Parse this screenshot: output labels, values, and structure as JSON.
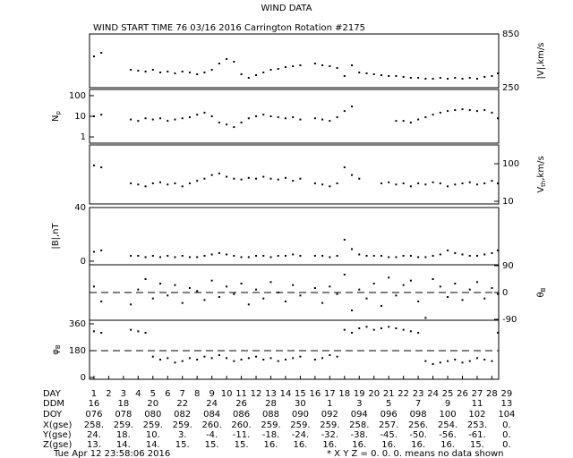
{
  "title": "WIND DATA",
  "subtitle": "WIND START TIME  76 03/16 2016 Carrington Rotation #2175",
  "chart_data": [
    {
      "type": "scatter",
      "ylabel": "|V|,km/s",
      "axis_side": "right",
      "log": false,
      "color": "#000000",
      "xlim": [
        0.7,
        28.46
      ],
      "ylim": [
        250,
        850
      ],
      "yticks": [
        250,
        850
      ],
      "x": [
        1,
        1.5,
        2,
        2.5,
        3,
        3.5,
        4,
        4.5,
        5,
        5.5,
        6,
        6.5,
        7,
        7.5,
        8,
        8.5,
        9,
        9.5,
        10,
        10.5,
        11,
        11.5,
        12,
        12.5,
        13,
        13.5,
        14,
        14.5,
        15,
        15.5,
        16,
        16.5,
        17,
        17.5,
        18,
        18.5,
        19,
        19.5,
        20,
        20.5,
        21,
        21.5,
        22,
        22.5,
        23,
        23.5,
        24,
        24.5,
        25,
        25.5,
        26,
        26.5,
        27,
        27.5,
        28,
        28.4
      ],
      "values": [
        600,
        640,
        null,
        null,
        null,
        450,
        440,
        430,
        450,
        420,
        430,
        410,
        430,
        420,
        400,
        420,
        450,
        520,
        570,
        540,
        400,
        360,
        390,
        420,
        450,
        460,
        480,
        490,
        500,
        null,
        520,
        500,
        490,
        470,
        380,
        500,
        420,
        410,
        400,
        390,
        380,
        380,
        370,
        360,
        360,
        350,
        350,
        360,
        350,
        360,
        350,
        360,
        350,
        370,
        380,
        410
      ]
    },
    {
      "type": "scatter",
      "ylabel": "N",
      "ylabel_sub": "p",
      "axis_side": "left",
      "log": true,
      "color": "#000000",
      "xlim": [
        0.7,
        28.46
      ],
      "ylim": [
        0.5,
        200
      ],
      "yticks": [
        1,
        10,
        100
      ],
      "x": [
        1,
        1.5,
        2,
        2.5,
        3,
        3.5,
        4,
        4.5,
        5,
        5.5,
        6,
        6.5,
        7,
        7.5,
        8,
        8.5,
        9,
        9.5,
        10,
        10.5,
        11,
        11.5,
        12,
        12.5,
        13,
        13.5,
        14,
        14.5,
        15,
        15.5,
        16,
        16.5,
        17,
        17.5,
        18,
        18.5,
        19,
        19.5,
        20,
        20.5,
        21,
        21.5,
        22,
        22.5,
        23,
        23.5,
        24,
        24.5,
        25,
        25.5,
        26,
        26.5,
        27,
        27.5,
        28,
        28.4
      ],
      "values": [
        10,
        12,
        null,
        null,
        null,
        7,
        6,
        8,
        7,
        8,
        6,
        7,
        8,
        9,
        12,
        15,
        10,
        5,
        4,
        3,
        5,
        8,
        10,
        12,
        10,
        9,
        8,
        9,
        7,
        null,
        8,
        7,
        6,
        9,
        18,
        30,
        null,
        null,
        null,
        null,
        null,
        6,
        6,
        5,
        7,
        9,
        12,
        15,
        18,
        20,
        22,
        20,
        18,
        20,
        15,
        8
      ]
    },
    {
      "type": "scatter",
      "ylabel": "V",
      "ylabel_sub": "th",
      "ylabel_suffix": ",km/s",
      "axis_side": "right",
      "log": true,
      "color": "#000000",
      "xlim": [
        0.7,
        28.46
      ],
      "ylim": [
        8.5,
        316
      ],
      "yticks": [
        10,
        100
      ],
      "x": [
        1,
        1.5,
        2,
        2.5,
        3,
        3.5,
        4,
        4.5,
        5,
        5.5,
        6,
        6.5,
        7,
        7.5,
        8,
        8.5,
        9,
        9.5,
        10,
        10.5,
        11,
        11.5,
        12,
        12.5,
        13,
        13.5,
        14,
        14.5,
        15,
        15.5,
        16,
        16.5,
        17,
        17.5,
        18,
        18.5,
        19,
        19.5,
        20,
        20.5,
        21,
        21.5,
        22,
        22.5,
        23,
        23.5,
        24,
        24.5,
        25,
        25.5,
        26,
        26.5,
        27,
        27.5,
        28,
        28.4
      ],
      "values": [
        90,
        80,
        null,
        null,
        null,
        30,
        28,
        25,
        30,
        32,
        28,
        30,
        25,
        30,
        35,
        40,
        50,
        55,
        45,
        40,
        38,
        42,
        40,
        45,
        40,
        38,
        42,
        35,
        40,
        null,
        30,
        28,
        25,
        30,
        80,
        50,
        40,
        null,
        null,
        30,
        32,
        28,
        30,
        25,
        30,
        28,
        32,
        30,
        25,
        28,
        30,
        32,
        28,
        30,
        35,
        30
      ]
    },
    {
      "type": "scatter",
      "ylabel": "|B|,nT",
      "axis_side": "left",
      "log": false,
      "color": "#000000",
      "xlim": [
        0.7,
        28.46
      ],
      "ylim": [
        -2.7,
        40
      ],
      "yticks": [
        0,
        40
      ],
      "x": [
        1,
        1.5,
        2,
        2.5,
        3,
        3.5,
        4,
        4.5,
        5,
        5.5,
        6,
        6.5,
        7,
        7.5,
        8,
        8.5,
        9,
        9.5,
        10,
        10.5,
        11,
        11.5,
        12,
        12.5,
        13,
        13.5,
        14,
        14.5,
        15,
        15.5,
        16,
        16.5,
        17,
        17.5,
        18,
        18.5,
        19,
        19.5,
        20,
        20.5,
        21,
        21.5,
        22,
        22.5,
        23,
        23.5,
        24,
        24.5,
        25,
        25.5,
        26,
        26.5,
        27,
        27.5,
        28,
        28.4
      ],
      "values": [
        7,
        8,
        null,
        null,
        null,
        4,
        4,
        3,
        4,
        3,
        4,
        3,
        4,
        3,
        3,
        4,
        5,
        6,
        5,
        4,
        3,
        3,
        4,
        4,
        3,
        4,
        4,
        5,
        4,
        null,
        4,
        4,
        3,
        4,
        16,
        9,
        5,
        4,
        4,
        4,
        3,
        3,
        4,
        4,
        3,
        3,
        4,
        5,
        8,
        6,
        5,
        4,
        4,
        5,
        6,
        8
      ]
    },
    {
      "type": "scatter",
      "ylabel": "θ",
      "ylabel_sub": "B",
      "axis_side": "right",
      "log": false,
      "color": "#000000",
      "hline": 0,
      "xlim": [
        0.7,
        28.46
      ],
      "ylim": [
        -93,
        93
      ],
      "yticks": [
        -90,
        0,
        90
      ],
      "x": [
        1,
        1.5,
        2,
        2.5,
        3,
        3.5,
        4,
        4.5,
        5,
        5.5,
        6,
        6.5,
        7,
        7.5,
        8,
        8.5,
        9,
        9.5,
        10,
        10.5,
        11,
        11.5,
        12,
        12.5,
        13,
        13.5,
        14,
        14.5,
        15,
        15.5,
        16,
        16.5,
        17,
        17.5,
        18,
        18.5,
        19,
        19.5,
        20,
        20.5,
        21,
        21.5,
        22,
        22.5,
        23,
        23.5,
        24,
        24.5,
        25,
        25.5,
        26,
        26.5,
        27,
        27.5,
        28,
        28.4
      ],
      "values": [
        20,
        -30,
        null,
        null,
        null,
        -40,
        10,
        45,
        -20,
        30,
        -10,
        25,
        -35,
        15,
        5,
        -25,
        40,
        -15,
        20,
        -5,
        30,
        -40,
        10,
        -20,
        35,
        0,
        -30,
        25,
        -10,
        null,
        15,
        -35,
        20,
        -5,
        60,
        -60,
        10,
        -20,
        30,
        -45,
        50,
        -10,
        25,
        40,
        -30,
        -85,
        45,
        20,
        -15,
        30,
        -25,
        10,
        35,
        -20,
        15,
        -5
      ]
    },
    {
      "type": "scatter",
      "ylabel": "φ",
      "ylabel_sub": "B",
      "axis_side": "left",
      "log": false,
      "color": "#000000",
      "hline": 180,
      "xlim": [
        0.7,
        28.46
      ],
      "ylim": [
        -12,
        384
      ],
      "yticks": [
        0,
        180,
        360
      ],
      "x": [
        1,
        1.5,
        2,
        2.5,
        3,
        3.5,
        4,
        4.5,
        5,
        5.5,
        6,
        6.5,
        7,
        7.5,
        8,
        8.5,
        9,
        9.5,
        10,
        10.5,
        11,
        11.5,
        12,
        12.5,
        13,
        13.5,
        14,
        14.5,
        15,
        15.5,
        16,
        16.5,
        17,
        17.5,
        18,
        18.5,
        19,
        19.5,
        20,
        20.5,
        21,
        21.5,
        22,
        22.5,
        23,
        23.5,
        24,
        24.5,
        25,
        25.5,
        26,
        26.5,
        27,
        27.5,
        28,
        28.4
      ],
      "values": [
        310,
        300,
        null,
        null,
        null,
        320,
        310,
        300,
        140,
        120,
        130,
        100,
        110,
        130,
        120,
        140,
        130,
        150,
        130,
        110,
        120,
        130,
        140,
        120,
        130,
        110,
        120,
        130,
        140,
        null,
        120,
        130,
        150,
        140,
        320,
        300,
        330,
        340,
        320,
        330,
        340,
        330,
        320,
        310,
        300,
        110,
        90,
        100,
        110,
        120,
        100,
        110,
        130,
        120,
        110,
        300
      ]
    }
  ],
  "table": {
    "row_labels": [
      "DAY",
      "DDM",
      "DOY",
      "X(gse)",
      "Y(gse)",
      "Z(gse)"
    ],
    "day": [
      1,
      2,
      3,
      4,
      5,
      6,
      7,
      8,
      9,
      10,
      11,
      12,
      13,
      14,
      15,
      16,
      17,
      18,
      19,
      20,
      21,
      22,
      23,
      24,
      25,
      26,
      27,
      28,
      29
    ],
    "ddm": [
      "16",
      "18",
      "20",
      "22",
      "24",
      "26",
      "28",
      "30",
      "1",
      "3",
      "5",
      "7",
      "9",
      "11",
      "13"
    ],
    "doy": [
      "076",
      "078",
      "080",
      "082",
      "084",
      "086",
      "088",
      "090",
      "092",
      "094",
      "096",
      "098",
      "100",
      "102",
      "104"
    ],
    "x_gse": [
      "258.",
      "259.",
      "259.",
      "259.",
      "260.",
      "260.",
      "259.",
      "259.",
      "259.",
      "258.",
      "257.",
      "256.",
      "254.",
      "253.",
      "0."
    ],
    "y_gse": [
      "24.",
      "18.",
      "10.",
      "3.",
      "-4.",
      "-11.",
      "-18.",
      "-24.",
      "-32.",
      "-38.",
      "-45.",
      "-50.",
      "-56.",
      "-61.",
      "0."
    ],
    "z_gse": [
      "13.",
      "14.",
      "14.",
      "15.",
      "15.",
      "15.",
      "16.",
      "16.",
      "16.",
      "16.",
      "16.",
      "16.",
      "16.",
      "15.",
      "0."
    ]
  },
  "footer": {
    "timestamp": "Tue Apr 12 23:58:06 2016",
    "note": "* X Y Z = 0. 0. 0. means no data shown"
  }
}
